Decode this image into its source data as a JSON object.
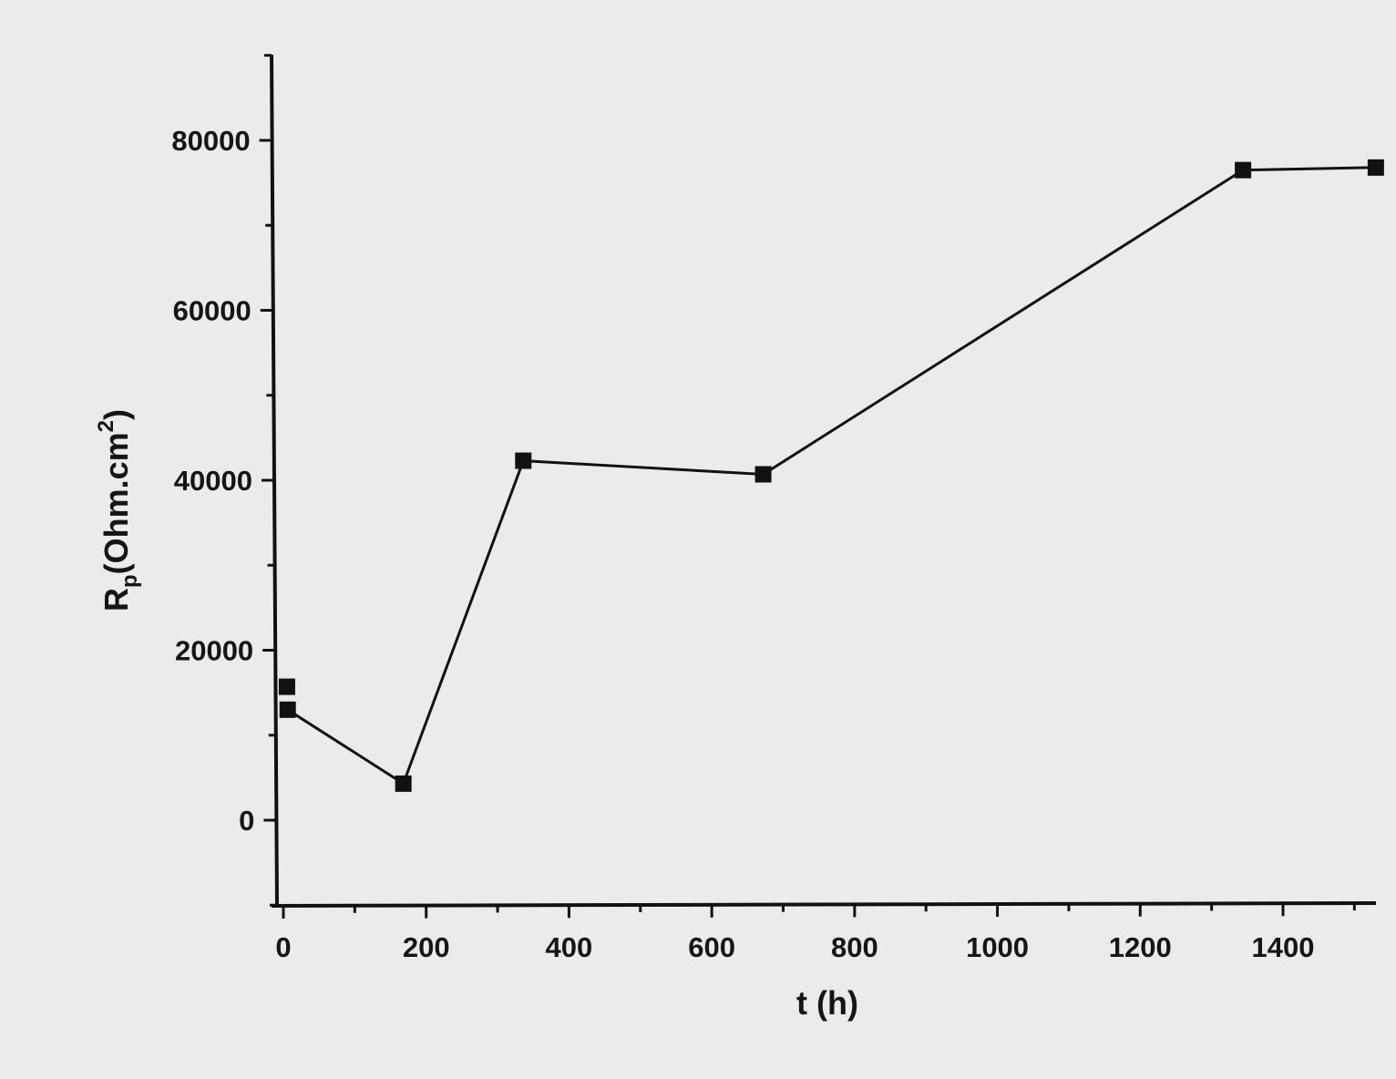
{
  "chart_data": {
    "type": "line",
    "xlabel": "t (h)",
    "ylabel": {
      "base": "R",
      "subscript": "p",
      "unit_open": "(Ohm.cm",
      "superscript": "2",
      "unit_close": ")"
    },
    "xlim": [
      -20,
      1530
    ],
    "ylim": [
      -10000,
      90000
    ],
    "x_ticks": [
      0,
      200,
      400,
      600,
      800,
      1000,
      1200,
      1400
    ],
    "y_ticks": [
      0,
      20000,
      40000,
      60000,
      80000
    ],
    "x_minor_step": 100,
    "y_minor_step": 10000,
    "grid": false,
    "series": [
      {
        "color": "#111111",
        "marker": "square",
        "points": [
          {
            "x": 5,
            "y": 15700
          },
          {
            "x": 6,
            "y": 13000
          },
          {
            "x": 168,
            "y": 4300
          },
          {
            "x": 336,
            "y": 42300
          },
          {
            "x": 672,
            "y": 40700
          },
          {
            "x": 1344,
            "y": 76500
          },
          {
            "x": 1530,
            "y": 76800
          }
        ],
        "connected_from_index": 1
      }
    ]
  }
}
